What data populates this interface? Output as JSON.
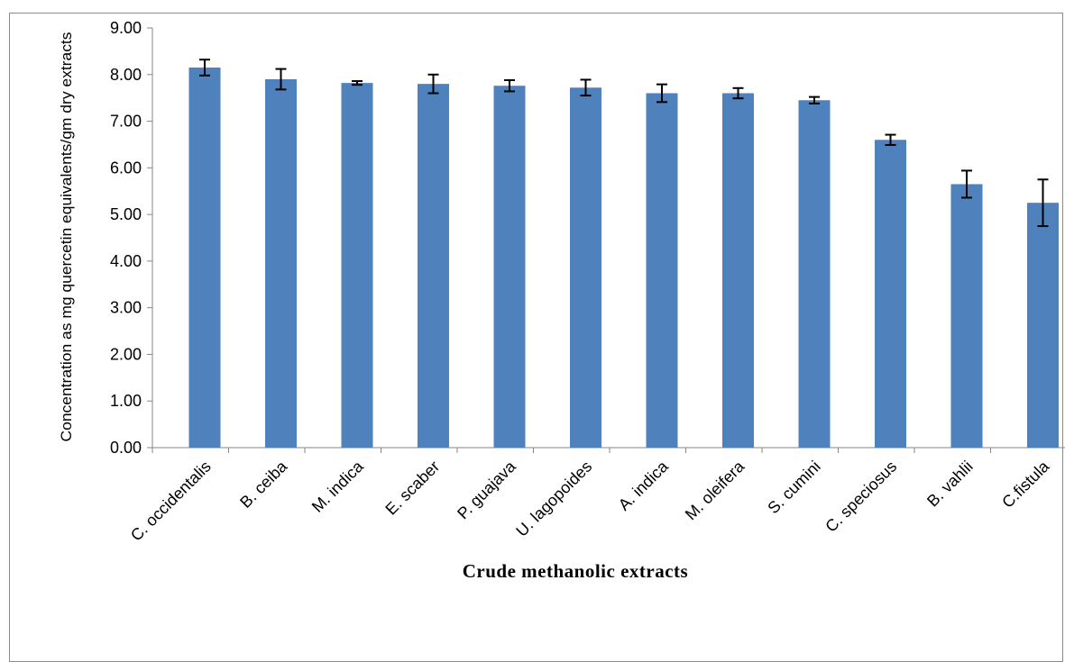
{
  "chart_data": {
    "type": "bar",
    "title": "",
    "xlabel": "Crude methanolic extracts",
    "ylabel": "Concentration as mg quercetin equivalents/gm dry extracts",
    "ylim": [
      0,
      9
    ],
    "y_ticks": [
      "0.00",
      "1.00",
      "2.00",
      "3.00",
      "4.00",
      "5.00",
      "6.00",
      "7.00",
      "8.00",
      "9.00"
    ],
    "categories": [
      "C. occidentalis",
      "B. ceiba",
      "M. indica",
      "E. scaber",
      "P. guajava",
      "U. lagopoides",
      "A. indica",
      "M. oleifera",
      "S. cumini",
      "C. speciosus",
      "B. vahlii",
      "C.fistula"
    ],
    "values": [
      8.15,
      7.9,
      7.82,
      7.8,
      7.76,
      7.72,
      7.6,
      7.6,
      7.45,
      6.6,
      5.65,
      5.25
    ],
    "errors": [
      0.17,
      0.22,
      0.04,
      0.2,
      0.12,
      0.17,
      0.19,
      0.11,
      0.07,
      0.11,
      0.29,
      0.5
    ],
    "bar_color": "#4F81BD",
    "grid": false,
    "legend": "none"
  }
}
